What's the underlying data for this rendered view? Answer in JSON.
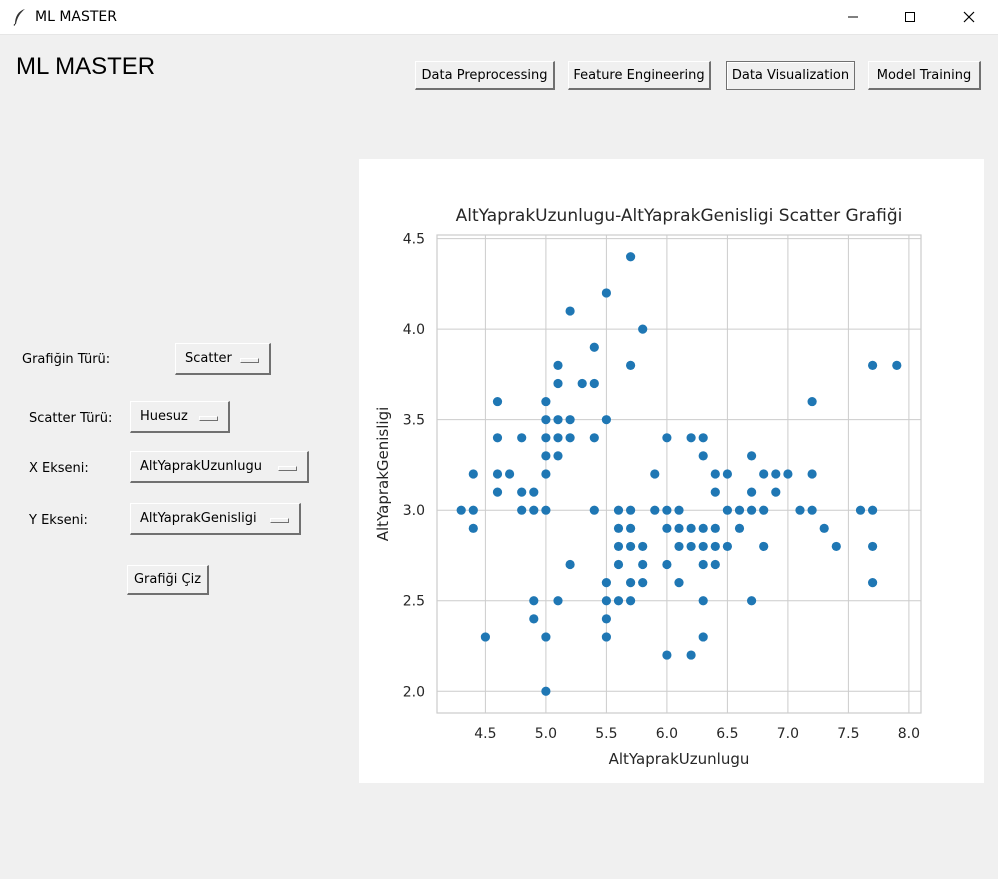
{
  "window": {
    "title": "ML MASTER",
    "controls": {
      "minimize_icon": "minimize-icon",
      "maximize_icon": "maximize-icon",
      "close_icon": "close-icon"
    }
  },
  "header": {
    "app_title": "ML MASTER",
    "tabs": [
      {
        "label": "Data Preprocessing",
        "active": false
      },
      {
        "label": "Feature Engineering",
        "active": false
      },
      {
        "label": "Data Visualization",
        "active": true
      },
      {
        "label": "Model Training",
        "active": false
      }
    ]
  },
  "form": {
    "chart_type_label": "Grafiğin Türü:",
    "chart_type_value": "Scatter",
    "scatter_type_label": "Scatter Türü:",
    "scatter_type_value": "Huesuz",
    "x_axis_label": "X Ekseni:",
    "x_axis_value": "AltYaprakUzunlugu",
    "y_axis_label": "Y Ekseni:",
    "y_axis_value": "AltYaprakGenisligi",
    "draw_button": "Grafiği Çiz"
  },
  "colors": {
    "point": "#1f77b4",
    "grid": "#cccccc",
    "text": "#262626"
  },
  "chart_data": {
    "type": "scatter",
    "title": "AltYaprakUzunlugu-AltYaprakGenisligi Scatter Grafiği",
    "xlabel": "AltYaprakUzunlugu",
    "ylabel": "AltYaprakGenisligi",
    "xlim": [
      4.1,
      8.1
    ],
    "ylim": [
      1.88,
      4.52
    ],
    "xticks": [
      "4.5",
      "5.0",
      "5.5",
      "6.0",
      "6.5",
      "7.0",
      "7.5",
      "8.0"
    ],
    "yticks": [
      "2.0",
      "2.5",
      "3.0",
      "3.5",
      "4.0",
      "4.5"
    ],
    "grid": true,
    "points": [
      [
        4.3,
        3.0
      ],
      [
        4.4,
        3.0
      ],
      [
        4.4,
        2.9
      ],
      [
        4.4,
        3.2
      ],
      [
        4.5,
        2.3
      ],
      [
        4.6,
        3.1
      ],
      [
        4.6,
        3.2
      ],
      [
        4.6,
        3.4
      ],
      [
        4.6,
        3.6
      ],
      [
        4.7,
        3.2
      ],
      [
        4.8,
        3.0
      ],
      [
        4.8,
        3.1
      ],
      [
        4.8,
        3.4
      ],
      [
        4.9,
        2.4
      ],
      [
        4.9,
        2.5
      ],
      [
        4.9,
        3.0
      ],
      [
        4.9,
        3.1
      ],
      [
        5.0,
        2.0
      ],
      [
        5.0,
        2.3
      ],
      [
        5.0,
        3.0
      ],
      [
        5.0,
        3.2
      ],
      [
        5.0,
        3.3
      ],
      [
        5.0,
        3.4
      ],
      [
        5.0,
        3.5
      ],
      [
        5.0,
        3.6
      ],
      [
        5.1,
        2.5
      ],
      [
        5.1,
        3.3
      ],
      [
        5.1,
        3.4
      ],
      [
        5.1,
        3.5
      ],
      [
        5.1,
        3.7
      ],
      [
        5.1,
        3.8
      ],
      [
        5.2,
        2.7
      ],
      [
        5.2,
        3.4
      ],
      [
        5.2,
        3.5
      ],
      [
        5.2,
        4.1
      ],
      [
        5.3,
        3.7
      ],
      [
        5.4,
        3.0
      ],
      [
        5.4,
        3.4
      ],
      [
        5.4,
        3.7
      ],
      [
        5.4,
        3.9
      ],
      [
        5.5,
        2.3
      ],
      [
        5.5,
        2.4
      ],
      [
        5.5,
        2.5
      ],
      [
        5.5,
        2.6
      ],
      [
        5.5,
        3.5
      ],
      [
        5.5,
        4.2
      ],
      [
        5.6,
        2.5
      ],
      [
        5.6,
        2.7
      ],
      [
        5.6,
        2.8
      ],
      [
        5.6,
        2.9
      ],
      [
        5.6,
        3.0
      ],
      [
        5.7,
        2.5
      ],
      [
        5.7,
        2.6
      ],
      [
        5.7,
        2.8
      ],
      [
        5.7,
        2.9
      ],
      [
        5.7,
        3.0
      ],
      [
        5.7,
        3.8
      ],
      [
        5.7,
        4.4
      ],
      [
        5.8,
        2.6
      ],
      [
        5.8,
        2.7
      ],
      [
        5.8,
        2.8
      ],
      [
        5.8,
        4.0
      ],
      [
        5.9,
        3.0
      ],
      [
        5.9,
        3.2
      ],
      [
        6.0,
        2.2
      ],
      [
        6.0,
        2.7
      ],
      [
        6.0,
        2.9
      ],
      [
        6.0,
        3.0
      ],
      [
        6.0,
        3.4
      ],
      [
        6.1,
        2.6
      ],
      [
        6.1,
        2.8
      ],
      [
        6.1,
        2.9
      ],
      [
        6.1,
        3.0
      ],
      [
        6.2,
        2.2
      ],
      [
        6.2,
        2.8
      ],
      [
        6.2,
        2.9
      ],
      [
        6.2,
        3.4
      ],
      [
        6.3,
        2.3
      ],
      [
        6.3,
        2.5
      ],
      [
        6.3,
        2.7
      ],
      [
        6.3,
        2.8
      ],
      [
        6.3,
        2.9
      ],
      [
        6.3,
        3.3
      ],
      [
        6.3,
        3.4
      ],
      [
        6.4,
        2.7
      ],
      [
        6.4,
        2.8
      ],
      [
        6.4,
        2.9
      ],
      [
        6.4,
        3.1
      ],
      [
        6.4,
        3.2
      ],
      [
        6.5,
        2.8
      ],
      [
        6.5,
        3.0
      ],
      [
        6.5,
        3.2
      ],
      [
        6.6,
        2.9
      ],
      [
        6.6,
        3.0
      ],
      [
        6.7,
        2.5
      ],
      [
        6.7,
        3.0
      ],
      [
        6.7,
        3.1
      ],
      [
        6.7,
        3.3
      ],
      [
        6.8,
        2.8
      ],
      [
        6.8,
        3.0
      ],
      [
        6.8,
        3.2
      ],
      [
        6.9,
        3.1
      ],
      [
        6.9,
        3.2
      ],
      [
        7.0,
        3.2
      ],
      [
        7.1,
        3.0
      ],
      [
        7.2,
        3.0
      ],
      [
        7.2,
        3.2
      ],
      [
        7.2,
        3.6
      ],
      [
        7.3,
        2.9
      ],
      [
        7.4,
        2.8
      ],
      [
        7.6,
        3.0
      ],
      [
        7.7,
        2.6
      ],
      [
        7.7,
        2.8
      ],
      [
        7.7,
        3.0
      ],
      [
        7.7,
        3.8
      ],
      [
        7.9,
        3.8
      ]
    ]
  }
}
